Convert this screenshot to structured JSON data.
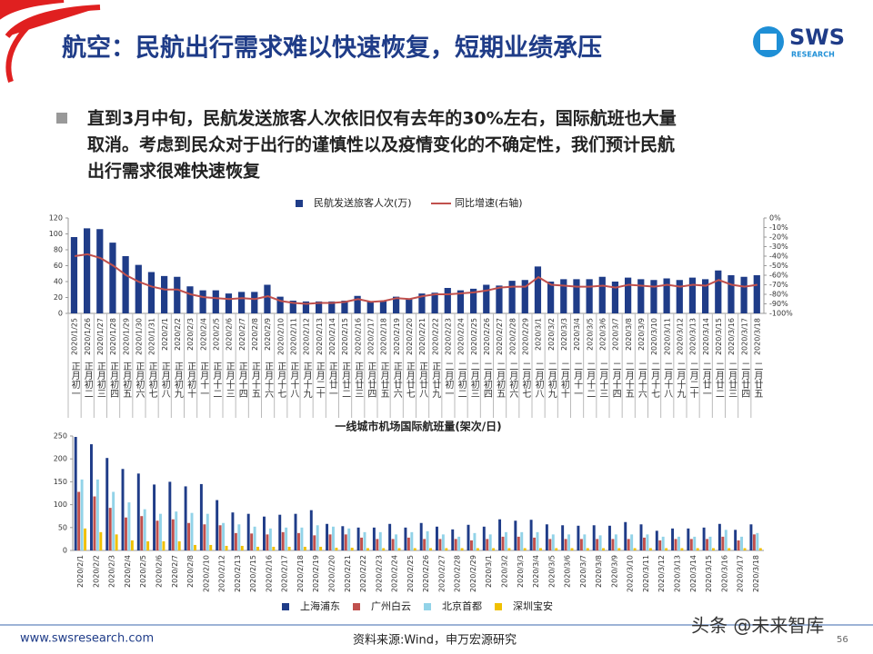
{
  "header": {
    "title": "航空：民航出行需求难以快速恢复，短期业绩承压",
    "logo": "SWS",
    "logo_sub": "RESEARCH"
  },
  "bullet": {
    "lines": [
      "直到3月中旬，民航发送旅客人次依旧仅有去年的30%左右，国际航班也大量",
      "取消。考虑到民众对于出行的谨慎性以及疫情变化的不确定性，我们预计民航",
      "出行需求很难快速恢复"
    ]
  },
  "footer": {
    "url": "www.swsresearch.com",
    "source": "资料来源:Wind，申万宏源研究",
    "page": "56",
    "watermark": "头条 @未来智库"
  },
  "chart_data": [
    {
      "type": "bar",
      "legend": "top",
      "categories": [
        "2020/1/25",
        "2020/1/26",
        "2020/1/27",
        "2020/1/28",
        "2020/1/29",
        "2020/1/30",
        "2020/1/31",
        "2020/2/1",
        "2020/2/2",
        "2020/2/3",
        "2020/2/4",
        "2020/2/5",
        "2020/2/6",
        "2020/2/7",
        "2020/2/8",
        "2020/2/9",
        "2020/2/10",
        "2020/2/11",
        "2020/2/12",
        "2020/2/13",
        "2020/2/14",
        "2020/2/15",
        "2020/2/16",
        "2020/2/17",
        "2020/2/18",
        "2020/2/19",
        "2020/2/20",
        "2020/2/21",
        "2020/2/22",
        "2020/2/23",
        "2020/2/24",
        "2020/2/25",
        "2020/2/26",
        "2020/2/27",
        "2020/2/28",
        "2020/2/29",
        "2020/3/1",
        "2020/3/2",
        "2020/3/3",
        "2020/3/4",
        "2020/3/5",
        "2020/3/6",
        "2020/3/7",
        "2020/3/8",
        "2020/3/9",
        "2020/3/10",
        "2020/3/11",
        "2020/3/12",
        "2020/3/13",
        "2020/3/14",
        "2020/3/15",
        "2020/3/16",
        "2020/3/17",
        "2020/3/18"
      ],
      "lunar_categories": [
        "正月初一",
        "正月初二",
        "正月初三",
        "正月初四",
        "正月初五",
        "正月初六",
        "正月初七",
        "正月初八",
        "正月初九",
        "正月初十",
        "正月十一",
        "正月十二",
        "正月十三",
        "正月十四",
        "正月十五",
        "正月十六",
        "正月十七",
        "正月十八",
        "正月十九",
        "正月二十",
        "正月廿一",
        "正月廿二",
        "正月廿三",
        "正月廿四",
        "正月廿五",
        "正月廿六",
        "正月廿七",
        "正月廿八",
        "正月廿九",
        "二月初一",
        "二月初二",
        "二月初三",
        "二月初四",
        "二月初五",
        "二月初六",
        "二月初七",
        "二月初八",
        "二月初九",
        "二月初十",
        "二月十一",
        "二月十二",
        "二月十三",
        "二月十四",
        "二月十五",
        "二月十六",
        "二月十七",
        "二月十八",
        "二月十九",
        "二月二十",
        "二月廿一",
        "二月廿二",
        "二月廿三",
        "二月廿四",
        "二月廿五"
      ],
      "series": [
        {
          "name": "民航发送旅客人次(万)",
          "color": "#1f3c88",
          "values": [
            96,
            107,
            106,
            89,
            72,
            61,
            52,
            47,
            46,
            34,
            29,
            29,
            25,
            27,
            27,
            36,
            21,
            16,
            15,
            15,
            15,
            16,
            22,
            15,
            16,
            21,
            18,
            25,
            26,
            32,
            29,
            31,
            36,
            35,
            41,
            42,
            59,
            40,
            43,
            43,
            43,
            46,
            40,
            45,
            43,
            42,
            44,
            42,
            45,
            43,
            54,
            48,
            46,
            48
          ]
        },
        {
          "name": "同比增速(右轴)",
          "color": "#c0504d",
          "type": "line",
          "axis": "y2",
          "values": [
            -40,
            -38,
            -42,
            -50,
            -60,
            -67,
            -72,
            -75,
            -75,
            -80,
            -83,
            -84,
            -85,
            -84,
            -85,
            -82,
            -87,
            -89,
            -90,
            -89,
            -89,
            -88,
            -85,
            -88,
            -87,
            -84,
            -85,
            -82,
            -80,
            -80,
            -79,
            -78,
            -76,
            -73,
            -72,
            -72,
            -62,
            -70,
            -71,
            -72,
            -72,
            -71,
            -73,
            -70,
            -71,
            -72,
            -70,
            -72,
            -70,
            -71,
            -65,
            -70,
            -72,
            -70
          ]
        }
      ],
      "ylim": [
        0,
        120
      ],
      "yticks": [
        0,
        20,
        40,
        60,
        80,
        100,
        120
      ],
      "y2lim": [
        -100,
        0
      ],
      "y2ticks": [
        {
          "value": 0,
          "label": "0%"
        },
        {
          "value": -10,
          "label": "-10%"
        },
        {
          "value": -20,
          "label": "-20%"
        },
        {
          "value": -30,
          "label": "-30%"
        },
        {
          "value": -40,
          "label": "-40%"
        },
        {
          "value": -50,
          "label": "-50%"
        },
        {
          "value": -60,
          "label": "-60%"
        },
        {
          "value": -70,
          "label": "-70%"
        },
        {
          "value": -80,
          "label": "-80%"
        },
        {
          "value": -90,
          "label": "-90%"
        },
        {
          "value": -100,
          "label": "-100%"
        }
      ]
    },
    {
      "type": "bar",
      "title": "一线城市机场国际航班量(架次/日)",
      "legend": "bottom",
      "categories": [
        "2020/2/1",
        "2020/2/2",
        "2020/2/3",
        "2020/2/4",
        "2020/2/5",
        "2020/2/6",
        "2020/2/7",
        "2020/2/8",
        "2020/2/10",
        "2020/2/12",
        "2020/2/13",
        "2020/2/15",
        "2020/2/16",
        "2020/2/17",
        "2020/2/18",
        "2020/2/19",
        "2020/2/20",
        "2020/2/21",
        "2020/2/22",
        "2020/2/23",
        "2020/2/24",
        "2020/2/25",
        "2020/2/26",
        "2020/2/27",
        "2020/2/28",
        "2020/2/29",
        "2020/3/1",
        "2020/3/2",
        "2020/3/3",
        "2020/3/4",
        "2020/3/5",
        "2020/3/6",
        "2020/3/7",
        "2020/3/8",
        "2020/3/9",
        "2020/3/10",
        "2020/3/11",
        "2020/3/12",
        "2020/3/13",
        "2020/3/14",
        "2020/3/15",
        "2020/3/16",
        "2020/3/17",
        "2020/3/18"
      ],
      "series": [
        {
          "name": "上海浦东",
          "color": "#1f3c88",
          "values": [
            248,
            232,
            202,
            178,
            168,
            144,
            150,
            140,
            145,
            110,
            83,
            80,
            74,
            78,
            80,
            88,
            58,
            53,
            50,
            50,
            58,
            50,
            60,
            52,
            46,
            56,
            52,
            68,
            65,
            67,
            57,
            55,
            54,
            55,
            54,
            62,
            57,
            43,
            48,
            48,
            50,
            58,
            45,
            57
          ]
        },
        {
          "name": "广州白云",
          "color": "#c0504d",
          "values": [
            128,
            118,
            93,
            72,
            75,
            65,
            68,
            60,
            57,
            55,
            38,
            37,
            35,
            40,
            38,
            33,
            35,
            35,
            28,
            25,
            25,
            28,
            25,
            25,
            25,
            22,
            25,
            30,
            30,
            28,
            25,
            25,
            25,
            25,
            25,
            25,
            28,
            22,
            25,
            25,
            25,
            30,
            22,
            35
          ]
        },
        {
          "name": "北京首都",
          "color": "#92d3e8",
          "values": [
            155,
            155,
            128,
            105,
            90,
            80,
            85,
            82,
            80,
            60,
            57,
            52,
            48,
            50,
            50,
            55,
            52,
            48,
            40,
            40,
            35,
            40,
            42,
            35,
            30,
            38,
            35,
            40,
            40,
            40,
            35,
            35,
            35,
            33,
            35,
            35,
            35,
            30,
            30,
            30,
            30,
            45,
            30,
            38
          ]
        },
        {
          "name": "深圳宝安",
          "color": "#f0c000",
          "values": [
            48,
            40,
            35,
            22,
            20,
            20,
            20,
            12,
            12,
            10,
            10,
            8,
            8,
            8,
            8,
            8,
            6,
            6,
            5,
            5,
            5,
            5,
            5,
            5,
            5,
            5,
            5,
            5,
            5,
            5,
            5,
            5,
            5,
            5,
            5,
            5,
            5,
            5,
            5,
            5,
            5,
            5,
            5,
            5
          ]
        }
      ],
      "ylim": [
        0,
        250
      ],
      "yticks": [
        0,
        50,
        100,
        150,
        200,
        250
      ]
    }
  ]
}
